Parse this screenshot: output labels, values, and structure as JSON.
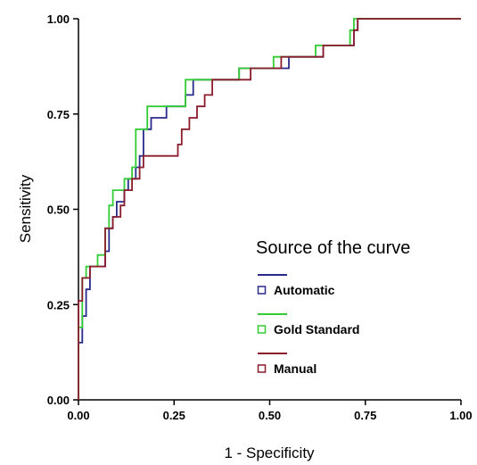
{
  "chart_data": {
    "type": "line",
    "title": "",
    "xlabel": "1 - Specificity",
    "ylabel": "Sensitivity",
    "xlim": [
      0,
      1
    ],
    "ylim": [
      0,
      1
    ],
    "x_ticks": [
      "0.00",
      "0.25",
      "0.50",
      "0.75",
      "1.00"
    ],
    "y_ticks": [
      "0.00",
      "0.25",
      "0.50",
      "0.75",
      "1.00"
    ],
    "grid": false,
    "legend_position": "bottom-right",
    "legend_title": "Source of the  curve",
    "series": [
      {
        "name": "Automatic",
        "color": "#2a2a8c",
        "points": [
          [
            0,
            0
          ],
          [
            0,
            0.15
          ],
          [
            0.01,
            0.15
          ],
          [
            0.01,
            0.22
          ],
          [
            0.02,
            0.22
          ],
          [
            0.02,
            0.29
          ],
          [
            0.03,
            0.29
          ],
          [
            0.03,
            0.35
          ],
          [
            0.07,
            0.35
          ],
          [
            0.07,
            0.39
          ],
          [
            0.08,
            0.39
          ],
          [
            0.08,
            0.45
          ],
          [
            0.09,
            0.45
          ],
          [
            0.09,
            0.48
          ],
          [
            0.1,
            0.48
          ],
          [
            0.1,
            0.52
          ],
          [
            0.12,
            0.52
          ],
          [
            0.12,
            0.55
          ],
          [
            0.13,
            0.55
          ],
          [
            0.13,
            0.58
          ],
          [
            0.15,
            0.58
          ],
          [
            0.15,
            0.61
          ],
          [
            0.16,
            0.61
          ],
          [
            0.16,
            0.64
          ],
          [
            0.17,
            0.64
          ],
          [
            0.17,
            0.71
          ],
          [
            0.19,
            0.71
          ],
          [
            0.19,
            0.74
          ],
          [
            0.23,
            0.74
          ],
          [
            0.23,
            0.77
          ],
          [
            0.28,
            0.77
          ],
          [
            0.28,
            0.8
          ],
          [
            0.3,
            0.8
          ],
          [
            0.3,
            0.84
          ],
          [
            0.42,
            0.84
          ],
          [
            0.42,
            0.87
          ],
          [
            0.55,
            0.87
          ],
          [
            0.55,
            0.9
          ],
          [
            0.64,
            0.9
          ],
          [
            0.64,
            0.93
          ],
          [
            0.72,
            0.93
          ],
          [
            0.72,
            0.97
          ],
          [
            0.73,
            0.97
          ],
          [
            0.73,
            1.0
          ],
          [
            1.0,
            1.0
          ]
        ]
      },
      {
        "name": "Gold Standard",
        "color": "#33cc33",
        "points": [
          [
            0,
            0
          ],
          [
            0,
            0.19
          ],
          [
            0.01,
            0.19
          ],
          [
            0.01,
            0.32
          ],
          [
            0.02,
            0.32
          ],
          [
            0.02,
            0.35
          ],
          [
            0.05,
            0.35
          ],
          [
            0.05,
            0.38
          ],
          [
            0.07,
            0.38
          ],
          [
            0.07,
            0.45
          ],
          [
            0.08,
            0.45
          ],
          [
            0.08,
            0.51
          ],
          [
            0.09,
            0.51
          ],
          [
            0.09,
            0.55
          ],
          [
            0.12,
            0.55
          ],
          [
            0.12,
            0.58
          ],
          [
            0.14,
            0.58
          ],
          [
            0.14,
            0.61
          ],
          [
            0.15,
            0.61
          ],
          [
            0.15,
            0.71
          ],
          [
            0.18,
            0.71
          ],
          [
            0.18,
            0.77
          ],
          [
            0.28,
            0.77
          ],
          [
            0.28,
            0.84
          ],
          [
            0.42,
            0.84
          ],
          [
            0.42,
            0.87
          ],
          [
            0.51,
            0.87
          ],
          [
            0.51,
            0.9
          ],
          [
            0.62,
            0.9
          ],
          [
            0.62,
            0.93
          ],
          [
            0.71,
            0.93
          ],
          [
            0.71,
            0.97
          ],
          [
            0.72,
            0.97
          ],
          [
            0.72,
            1.0
          ],
          [
            1.0,
            1.0
          ]
        ]
      },
      {
        "name": "Manual",
        "color": "#8b1c2c",
        "points": [
          [
            0,
            0
          ],
          [
            0,
            0.26
          ],
          [
            0.01,
            0.26
          ],
          [
            0.01,
            0.32
          ],
          [
            0.03,
            0.32
          ],
          [
            0.03,
            0.35
          ],
          [
            0.07,
            0.35
          ],
          [
            0.07,
            0.45
          ],
          [
            0.09,
            0.45
          ],
          [
            0.09,
            0.48
          ],
          [
            0.11,
            0.48
          ],
          [
            0.11,
            0.51
          ],
          [
            0.12,
            0.51
          ],
          [
            0.12,
            0.55
          ],
          [
            0.14,
            0.55
          ],
          [
            0.14,
            0.58
          ],
          [
            0.16,
            0.58
          ],
          [
            0.16,
            0.61
          ],
          [
            0.17,
            0.61
          ],
          [
            0.17,
            0.64
          ],
          [
            0.26,
            0.64
          ],
          [
            0.26,
            0.67
          ],
          [
            0.27,
            0.67
          ],
          [
            0.27,
            0.71
          ],
          [
            0.29,
            0.71
          ],
          [
            0.29,
            0.74
          ],
          [
            0.31,
            0.74
          ],
          [
            0.31,
            0.77
          ],
          [
            0.33,
            0.77
          ],
          [
            0.33,
            0.8
          ],
          [
            0.35,
            0.8
          ],
          [
            0.35,
            0.84
          ],
          [
            0.45,
            0.84
          ],
          [
            0.45,
            0.87
          ],
          [
            0.53,
            0.87
          ],
          [
            0.53,
            0.9
          ],
          [
            0.64,
            0.9
          ],
          [
            0.64,
            0.93
          ],
          [
            0.72,
            0.93
          ],
          [
            0.72,
            0.97
          ],
          [
            0.73,
            0.97
          ],
          [
            0.73,
            1.0
          ],
          [
            1.0,
            1.0
          ]
        ]
      }
    ]
  }
}
